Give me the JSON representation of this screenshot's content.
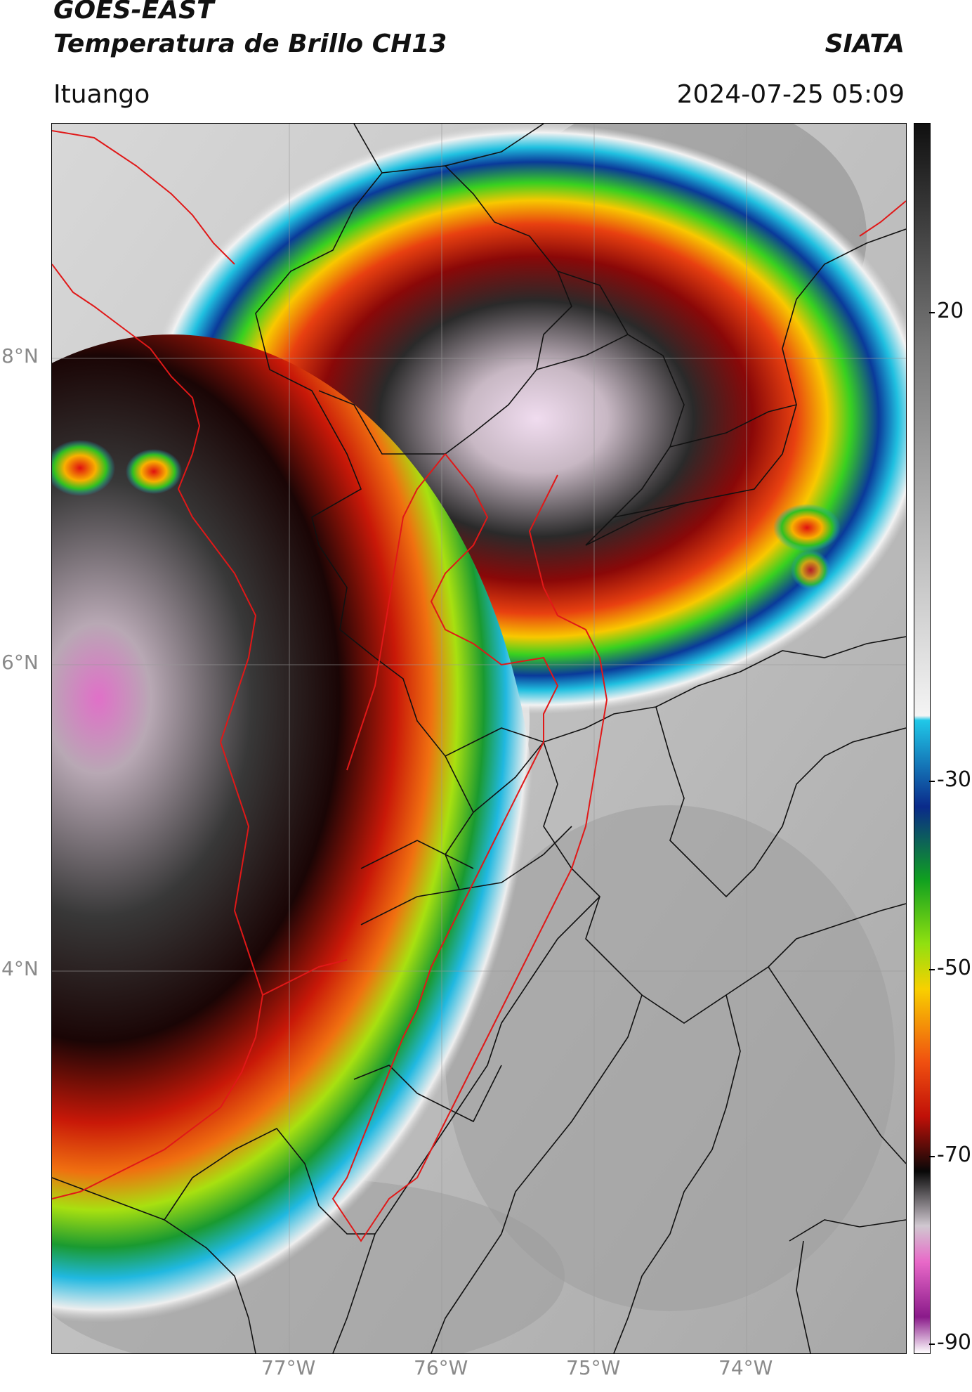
{
  "header": {
    "satellite": "GOES-EAST",
    "product": "Temperatura de Brillo CH13",
    "agency": "SIATA",
    "location": "Ituango",
    "timestamp": "2024-07-25 05:09"
  },
  "map": {
    "lat_labels": [
      "8°N",
      "6°N",
      "4°N"
    ],
    "lon_labels": [
      "77°W",
      "76°W",
      "75°W",
      "74°W"
    ],
    "grid": true,
    "colors": {
      "background_gray": "#b8b8b8",
      "department_border": "#e01818",
      "municipal_border": "#111111"
    }
  },
  "colorbar": {
    "labels": [
      "20",
      "-30",
      "-50",
      "-70",
      "-90"
    ],
    "stops": [
      {
        "value": 45,
        "color": "#101010"
      },
      {
        "value": 20,
        "color": "#7a7a7a"
      },
      {
        "value": -20,
        "color": "#f4f4f4"
      },
      {
        "value": -20.5,
        "color": "#20c8e8"
      },
      {
        "value": -30,
        "color": "#0a2a8a"
      },
      {
        "value": -38,
        "color": "#10a020"
      },
      {
        "value": -45,
        "color": "#90e010"
      },
      {
        "value": -50,
        "color": "#f8d000"
      },
      {
        "value": -58,
        "color": "#f05010"
      },
      {
        "value": -64,
        "color": "#c01008"
      },
      {
        "value": -70,
        "color": "#080808"
      },
      {
        "value": -76,
        "color": "#d0c8d0"
      },
      {
        "value": -80,
        "color": "#e868c8"
      },
      {
        "value": -86,
        "color": "#8a1a8a"
      },
      {
        "value": -90,
        "color": "#ffffff"
      }
    ]
  }
}
